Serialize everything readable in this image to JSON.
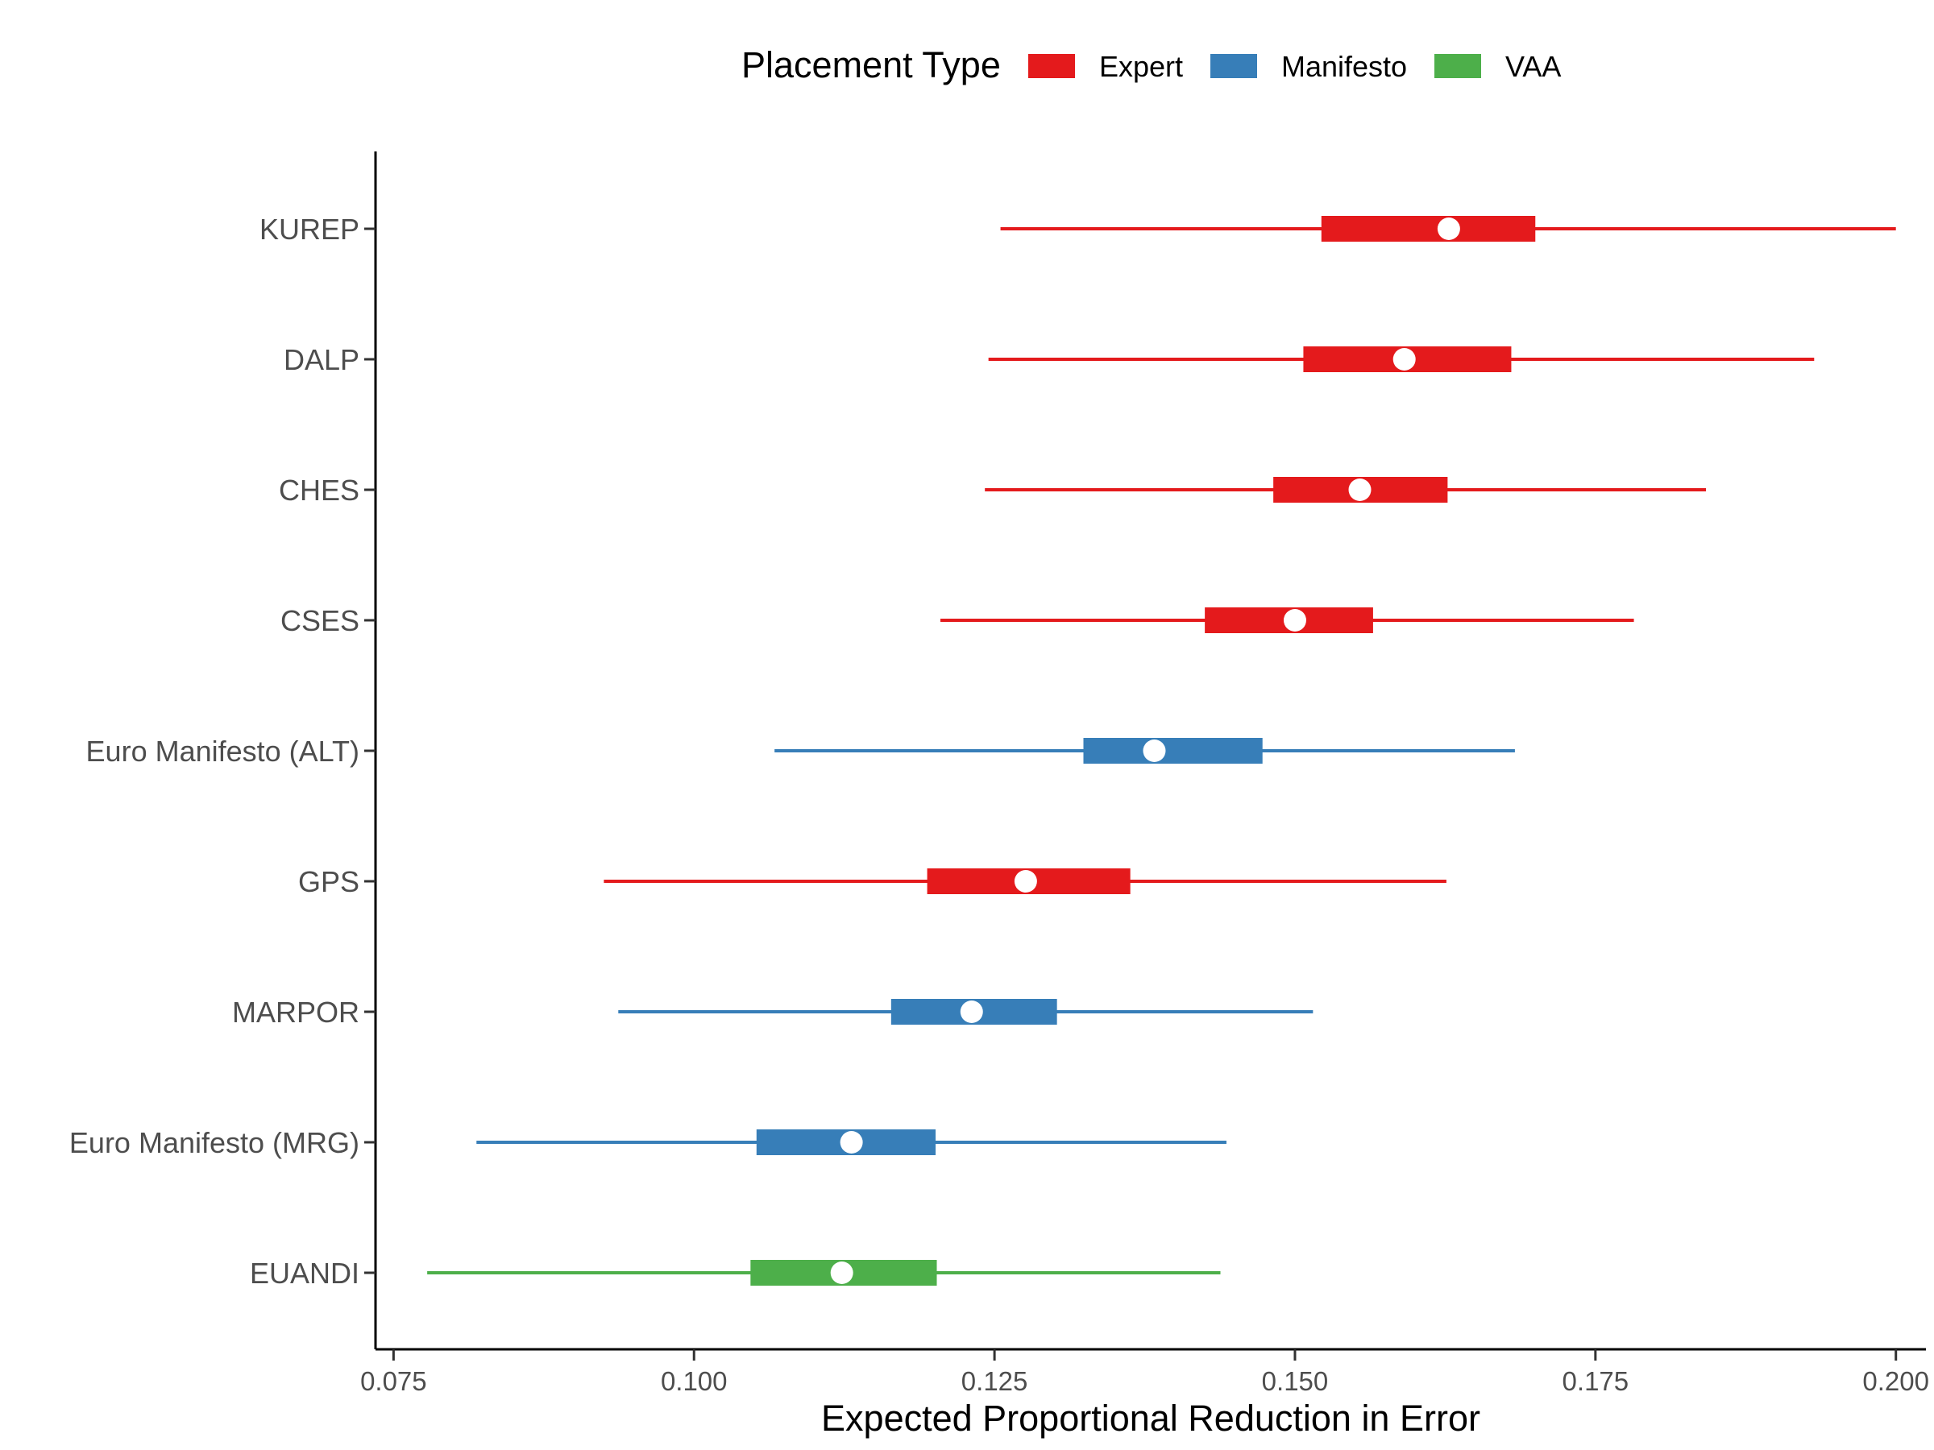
{
  "chart_data": {
    "type": "interval",
    "xlabel": "Expected Proportional Reduction in Error",
    "ylabel": "",
    "xlim": [
      0.0735,
      0.2025
    ],
    "xticks": [
      0.075,
      0.1,
      0.125,
      0.15,
      0.175,
      0.2
    ],
    "xtick_labels": [
      "0.075",
      "0.100",
      "0.125",
      "0.150",
      "0.175",
      "0.200"
    ],
    "legend": {
      "title": "Placement Type",
      "position": "top",
      "entries": [
        {
          "label": "Expert",
          "color": "#E41A1C"
        },
        {
          "label": "Manifesto",
          "color": "#377EB8"
        },
        {
          "label": "VAA",
          "color": "#4DAF4A"
        }
      ]
    },
    "grid": false,
    "rows": [
      {
        "label": "KUREP",
        "type": "Expert",
        "low": 0.1255,
        "q1": 0.1522,
        "median": 0.1628,
        "q3": 0.17,
        "high": 0.2
      },
      {
        "label": "DALP",
        "type": "Expert",
        "low": 0.1245,
        "q1": 0.1507,
        "median": 0.1591,
        "q3": 0.168,
        "high": 0.1932
      },
      {
        "label": "CHES",
        "type": "Expert",
        "low": 0.1242,
        "q1": 0.1482,
        "median": 0.1554,
        "q3": 0.1627,
        "high": 0.1842
      },
      {
        "label": "CSES",
        "type": "Expert",
        "low": 0.1205,
        "q1": 0.1425,
        "median": 0.15,
        "q3": 0.1565,
        "high": 0.1782
      },
      {
        "label": "Euro Manifesto (ALT)",
        "type": "Manifesto",
        "low": 0.1067,
        "q1": 0.1324,
        "median": 0.1383,
        "q3": 0.1473,
        "high": 0.1683
      },
      {
        "label": "GPS",
        "type": "Expert",
        "low": 0.0925,
        "q1": 0.1194,
        "median": 0.1276,
        "q3": 0.1363,
        "high": 0.1626
      },
      {
        "label": "MARPOR",
        "type": "Manifesto",
        "low": 0.0937,
        "q1": 0.1164,
        "median": 0.1231,
        "q3": 0.1302,
        "high": 0.1515
      },
      {
        "label": "Euro Manifesto (MRG)",
        "type": "Manifesto",
        "low": 0.0819,
        "q1": 0.1052,
        "median": 0.1131,
        "q3": 0.1201,
        "high": 0.1443
      },
      {
        "label": "EUANDI",
        "type": "VAA",
        "low": 0.0778,
        "q1": 0.1047,
        "median": 0.1123,
        "q3": 0.1202,
        "high": 0.1438
      }
    ]
  }
}
